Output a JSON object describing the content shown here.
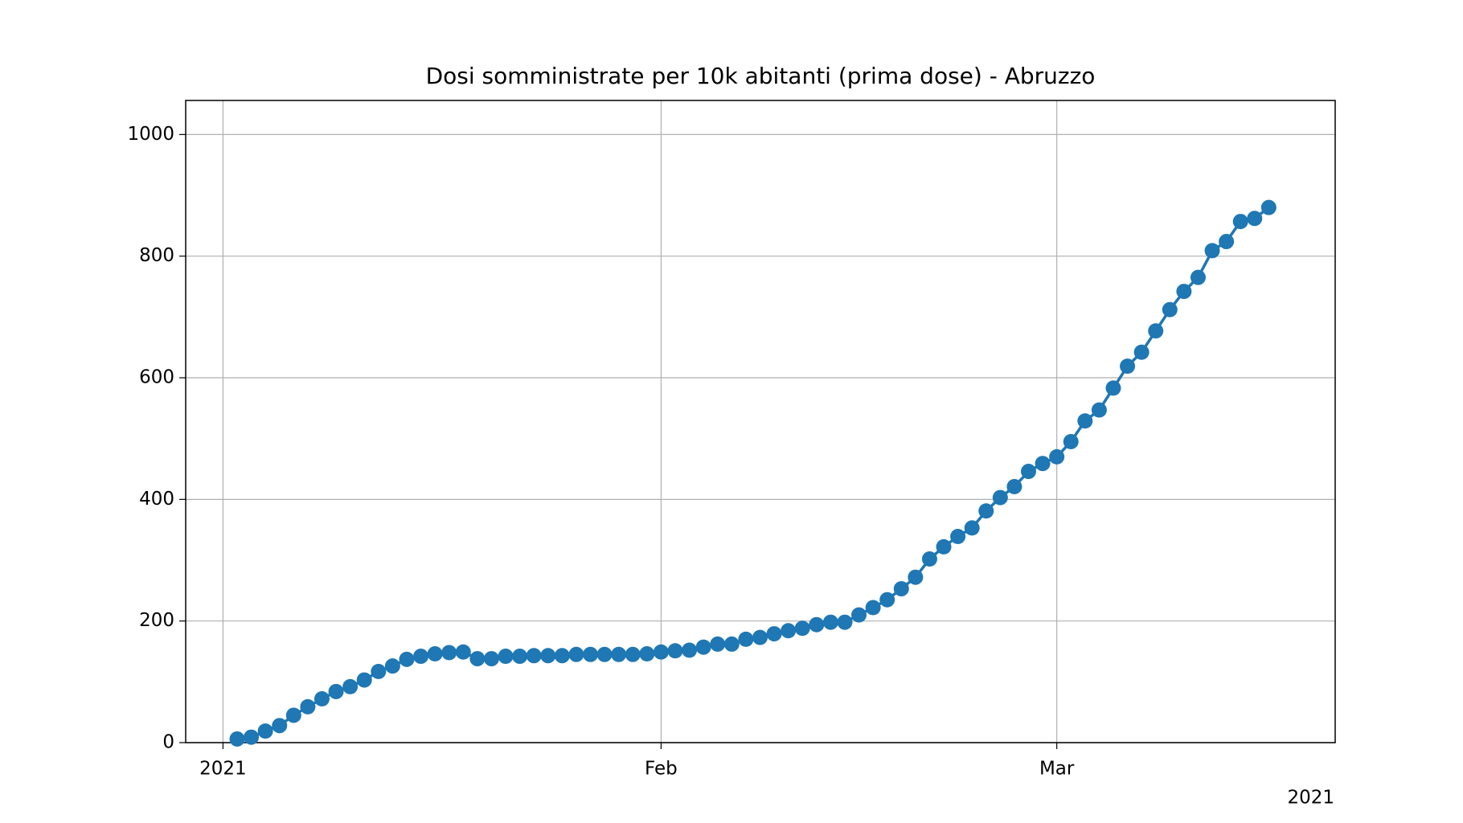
{
  "chart_data": {
    "type": "line",
    "title": "Dosi somministrate per 10k abitanti (prima dose) - Abruzzo",
    "x": [
      1,
      2,
      3,
      4,
      5,
      6,
      7,
      8,
      9,
      10,
      11,
      12,
      13,
      14,
      15,
      16,
      17,
      18,
      19,
      20,
      21,
      22,
      23,
      24,
      25,
      26,
      27,
      28,
      29,
      30,
      31,
      32,
      33,
      34,
      35,
      36,
      37,
      38,
      39,
      40,
      41,
      42,
      43,
      44,
      45,
      46,
      47,
      48,
      49,
      50,
      51,
      52,
      53,
      54,
      55,
      56,
      57,
      58,
      59,
      60,
      61,
      62,
      63,
      64,
      65,
      66,
      67,
      68,
      69,
      70,
      71,
      72,
      73,
      74
    ],
    "series": [
      {
        "color": "#1f77b4",
        "marker": "o",
        "values": [
          6,
          9,
          19,
          28,
          45,
          59,
          72,
          84,
          92,
          103,
          117,
          126,
          137,
          142,
          146,
          148,
          149,
          138,
          138,
          142,
          142,
          143,
          143,
          143,
          145,
          145,
          145,
          145,
          145,
          146,
          149,
          151,
          152,
          157,
          162,
          162,
          170,
          173,
          179,
          184,
          188,
          194,
          198,
          198,
          210,
          222,
          235,
          253,
          272,
          302,
          322,
          339,
          353,
          381,
          403,
          421,
          446,
          459,
          470,
          495,
          529,
          547,
          583,
          619,
          642,
          677,
          712,
          742,
          765,
          809,
          824,
          857,
          862,
          880
        ]
      }
    ],
    "xlim": [
      -2.64,
      78.7
    ],
    "xticks": [
      {
        "value": 0,
        "label": "2021"
      },
      {
        "value": 31,
        "label": "Feb"
      },
      {
        "value": 59,
        "label": "Mar"
      }
    ],
    "x_offset_label": "2021",
    "ylim": [
      0,
      1056
    ],
    "yticks": [
      0,
      200,
      400,
      600,
      800,
      1000
    ],
    "grid": true
  }
}
